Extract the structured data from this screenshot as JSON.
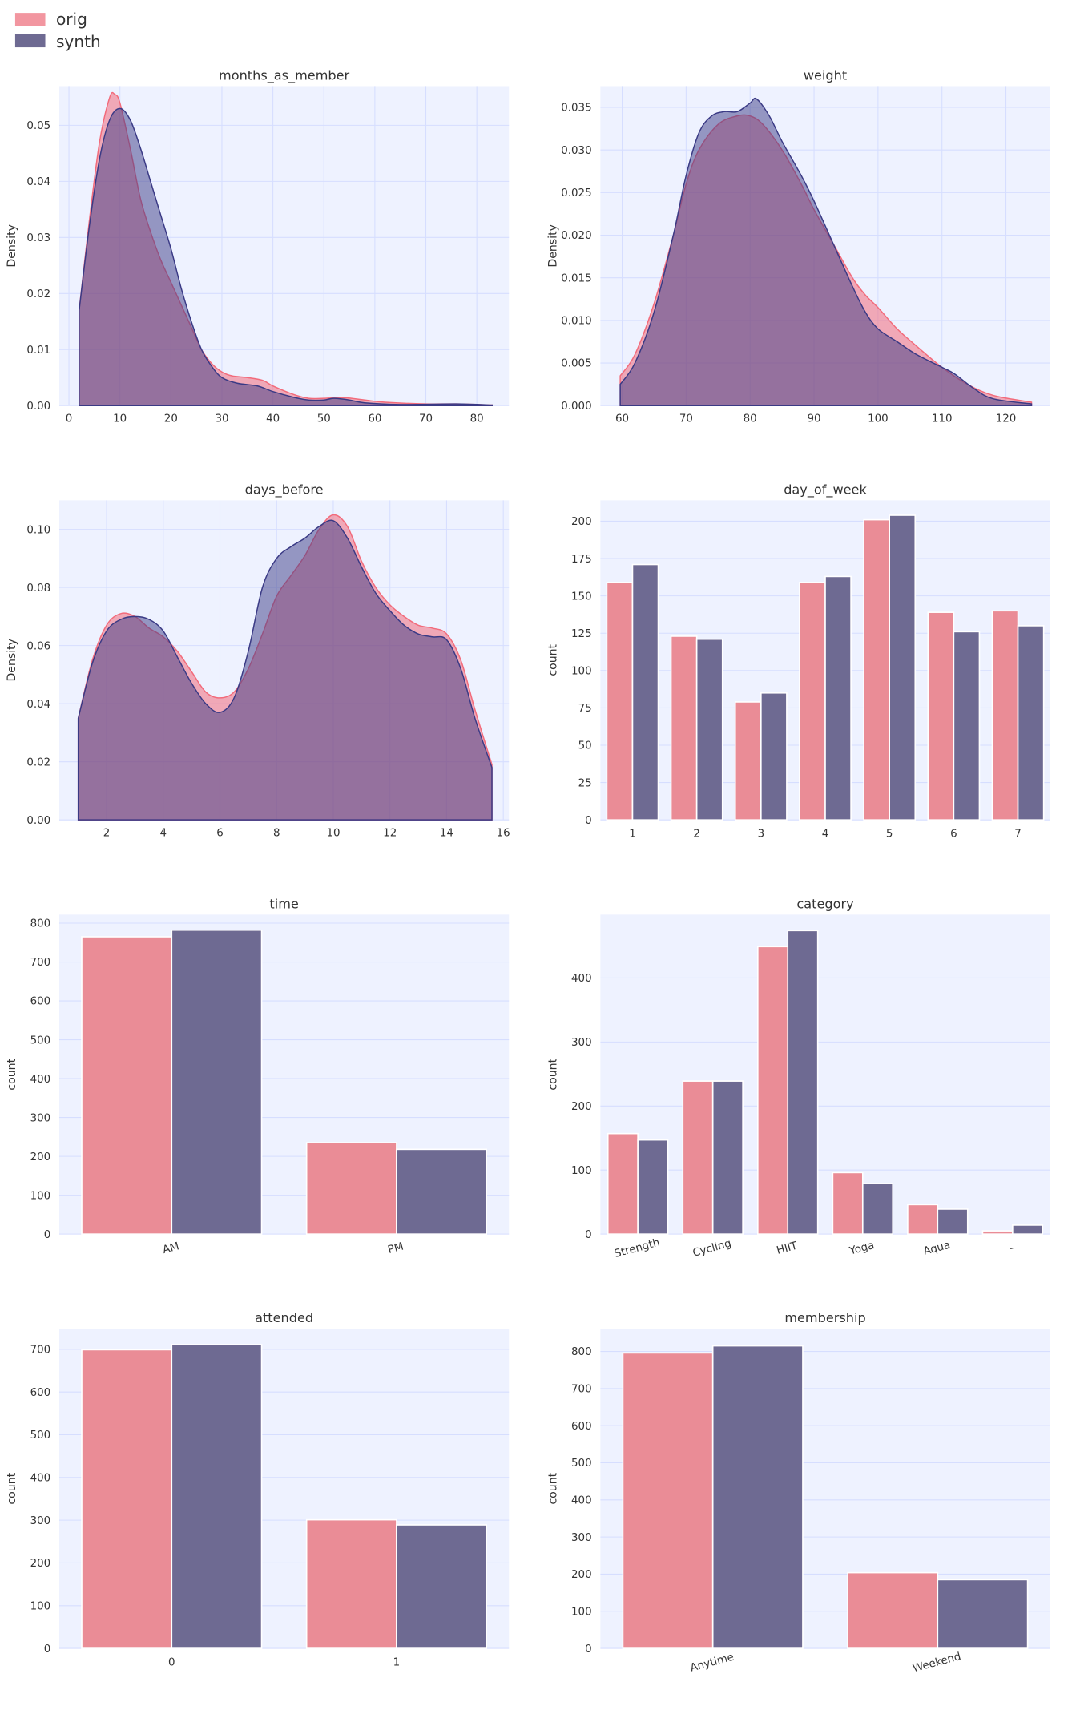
{
  "legend": {
    "items": [
      {
        "label": "orig",
        "color": "#f0848f"
      },
      {
        "label": "synth",
        "color": "#6e6a92"
      }
    ]
  },
  "colors": {
    "orig_bar": "#ea8c96",
    "synth_bar": "#6e6a92",
    "orig_kde": "#f26b7b",
    "synth_kde": "#3a3a85",
    "panel_bg": "#eef2ff",
    "grid": "#d6deff"
  },
  "chart_data": [
    {
      "type": "area",
      "title": "months_as_member",
      "xlabel": "",
      "ylabel": "Density",
      "xlim": [
        -1.9,
        86.3
      ],
      "ylim": [
        0,
        0.057
      ],
      "grid": true,
      "xticks": [
        0,
        10,
        20,
        30,
        40,
        50,
        60,
        70,
        80
      ],
      "yticks": [
        0,
        0.01,
        0.02,
        0.03,
        0.04,
        0.05
      ],
      "ytick_labels": [
        "0.00",
        "0.01",
        "0.02",
        "0.03",
        "0.04",
        "0.05"
      ],
      "series": [
        {
          "name": "orig",
          "points": [
            [
              2,
              0.017
            ],
            [
              4,
              0.033
            ],
            [
              6,
              0.047
            ],
            [
              8,
              0.055
            ],
            [
              9,
              0.0555
            ],
            [
              10,
              0.054
            ],
            [
              12,
              0.046
            ],
            [
              14,
              0.037
            ],
            [
              16,
              0.031
            ],
            [
              18,
              0.026
            ],
            [
              20,
              0.022
            ],
            [
              22,
              0.018
            ],
            [
              24,
              0.014
            ],
            [
              26,
              0.01
            ],
            [
              28,
              0.0075
            ],
            [
              30,
              0.006
            ],
            [
              32,
              0.0053
            ],
            [
              35,
              0.005
            ],
            [
              38,
              0.0045
            ],
            [
              40,
              0.0035
            ],
            [
              44,
              0.002
            ],
            [
              47,
              0.0013
            ],
            [
              50,
              0.0013
            ],
            [
              54,
              0.0014
            ],
            [
              58,
              0.001
            ],
            [
              62,
              0.0006
            ],
            [
              70,
              0.0003
            ],
            [
              76,
              0.0003
            ],
            [
              83,
              0.0001
            ]
          ]
        },
        {
          "name": "synth",
          "points": [
            [
              2,
              0.017
            ],
            [
              4,
              0.032
            ],
            [
              6,
              0.044
            ],
            [
              8,
              0.051
            ],
            [
              10,
              0.053
            ],
            [
              12,
              0.051
            ],
            [
              14,
              0.046
            ],
            [
              16,
              0.04
            ],
            [
              18,
              0.034
            ],
            [
              20,
              0.028
            ],
            [
              22,
              0.021
            ],
            [
              24,
              0.015
            ],
            [
              26,
              0.01
            ],
            [
              28,
              0.007
            ],
            [
              30,
              0.005
            ],
            [
              33,
              0.004
            ],
            [
              37,
              0.0035
            ],
            [
              40,
              0.0025
            ],
            [
              44,
              0.0015
            ],
            [
              47,
              0.001
            ],
            [
              50,
              0.001
            ],
            [
              52,
              0.0013
            ],
            [
              55,
              0.001
            ],
            [
              58,
              0.0005
            ],
            [
              65,
              0.0002
            ],
            [
              76,
              0.0003
            ],
            [
              83,
              0.0001
            ]
          ]
        }
      ]
    },
    {
      "type": "area",
      "title": "weight",
      "xlabel": "",
      "ylabel": "Density",
      "xlim": [
        56.6,
        126.9
      ],
      "ylim": [
        0,
        0.0375
      ],
      "grid": true,
      "xticks": [
        60,
        70,
        80,
        90,
        100,
        110,
        120
      ],
      "yticks": [
        0,
        0.005,
        0.01,
        0.015,
        0.02,
        0.025,
        0.03,
        0.035
      ],
      "ytick_labels": [
        "0.000",
        "0.005",
        "0.010",
        "0.015",
        "0.020",
        "0.025",
        "0.030",
        "0.035"
      ],
      "series": [
        {
          "name": "orig",
          "points": [
            [
              59.7,
              0.0035
            ],
            [
              62,
              0.006
            ],
            [
              65,
              0.012
            ],
            [
              68,
              0.02
            ],
            [
              70,
              0.026
            ],
            [
              72,
              0.03
            ],
            [
              75,
              0.033
            ],
            [
              78,
              0.034
            ],
            [
              80,
              0.034
            ],
            [
              82,
              0.033
            ],
            [
              85,
              0.03
            ],
            [
              88,
              0.026
            ],
            [
              90,
              0.023
            ],
            [
              93,
              0.019
            ],
            [
              96,
              0.015
            ],
            [
              98,
              0.013
            ],
            [
              100,
              0.0115
            ],
            [
              103,
              0.009
            ],
            [
              106,
              0.007
            ],
            [
              110,
              0.0045
            ],
            [
              114,
              0.0025
            ],
            [
              118,
              0.0012
            ],
            [
              124,
              0.0004
            ]
          ]
        },
        {
          "name": "synth",
          "points": [
            [
              59.7,
              0.0025
            ],
            [
              62,
              0.005
            ],
            [
              65,
              0.011
            ],
            [
              68,
              0.02
            ],
            [
              70,
              0.027
            ],
            [
              72,
              0.032
            ],
            [
              74,
              0.034
            ],
            [
              76,
              0.0345
            ],
            [
              78,
              0.0345
            ],
            [
              80,
              0.0355
            ],
            [
              81,
              0.036
            ],
            [
              83,
              0.034
            ],
            [
              85,
              0.031
            ],
            [
              88,
              0.027
            ],
            [
              90,
              0.024
            ],
            [
              93,
              0.019
            ],
            [
              96,
              0.014
            ],
            [
              98,
              0.011
            ],
            [
              100,
              0.009
            ],
            [
              103,
              0.0075
            ],
            [
              106,
              0.006
            ],
            [
              110,
              0.0045
            ],
            [
              112,
              0.0037
            ],
            [
              115,
              0.002
            ],
            [
              118,
              0.0008
            ],
            [
              124,
              0.0002
            ]
          ]
        }
      ]
    },
    {
      "type": "area",
      "title": "days_before",
      "xlabel": "",
      "ylabel": "Density",
      "xlim": [
        0.33,
        16.2
      ],
      "ylim": [
        0,
        0.11
      ],
      "grid": true,
      "xticks": [
        2,
        4,
        6,
        8,
        10,
        12,
        14,
        16
      ],
      "yticks": [
        0,
        0.02,
        0.04,
        0.06,
        0.08,
        0.1
      ],
      "ytick_labels": [
        "0.00",
        "0.02",
        "0.04",
        "0.06",
        "0.08",
        "0.10"
      ],
      "series": [
        {
          "name": "orig",
          "points": [
            [
              1,
              0.035
            ],
            [
              1.5,
              0.055
            ],
            [
              2,
              0.067
            ],
            [
              2.5,
              0.071
            ],
            [
              3,
              0.07
            ],
            [
              3.5,
              0.066
            ],
            [
              4,
              0.063
            ],
            [
              4.5,
              0.058
            ],
            [
              5,
              0.051
            ],
            [
              5.5,
              0.044
            ],
            [
              6,
              0.042
            ],
            [
              6.5,
              0.044
            ],
            [
              7,
              0.052
            ],
            [
              7.5,
              0.064
            ],
            [
              8,
              0.077
            ],
            [
              8.5,
              0.084
            ],
            [
              9,
              0.091
            ],
            [
              9.5,
              0.1
            ],
            [
              10,
              0.105
            ],
            [
              10.5,
              0.101
            ],
            [
              11,
              0.089
            ],
            [
              11.5,
              0.08
            ],
            [
              12,
              0.074
            ],
            [
              12.5,
              0.07
            ],
            [
              13,
              0.067
            ],
            [
              13.5,
              0.066
            ],
            [
              14,
              0.064
            ],
            [
              14.5,
              0.055
            ],
            [
              15,
              0.038
            ],
            [
              15.6,
              0.019
            ]
          ]
        },
        {
          "name": "synth",
          "points": [
            [
              1,
              0.035
            ],
            [
              1.5,
              0.054
            ],
            [
              2,
              0.065
            ],
            [
              2.5,
              0.069
            ],
            [
              3,
              0.07
            ],
            [
              3.5,
              0.069
            ],
            [
              4,
              0.065
            ],
            [
              4.5,
              0.056
            ],
            [
              5,
              0.047
            ],
            [
              5.5,
              0.04
            ],
            [
              6,
              0.037
            ],
            [
              6.5,
              0.042
            ],
            [
              7,
              0.058
            ],
            [
              7.5,
              0.08
            ],
            [
              8,
              0.09
            ],
            [
              8.5,
              0.094
            ],
            [
              9,
              0.097
            ],
            [
              9.5,
              0.101
            ],
            [
              10,
              0.103
            ],
            [
              10.5,
              0.097
            ],
            [
              11,
              0.087
            ],
            [
              11.5,
              0.078
            ],
            [
              12,
              0.072
            ],
            [
              12.5,
              0.067
            ],
            [
              13,
              0.064
            ],
            [
              13.5,
              0.063
            ],
            [
              14,
              0.062
            ],
            [
              14.5,
              0.052
            ],
            [
              15,
              0.035
            ],
            [
              15.6,
              0.018
            ]
          ]
        }
      ]
    },
    {
      "type": "bar",
      "title": "day_of_week",
      "xlabel": "",
      "ylabel": "count",
      "ylim": [
        0,
        214
      ],
      "grid": true,
      "rotate_labels": false,
      "categories": [
        "1",
        "2",
        "3",
        "4",
        "5",
        "6",
        "7"
      ],
      "yticks": [
        0,
        25,
        50,
        75,
        100,
        125,
        150,
        175,
        200
      ],
      "series": [
        {
          "name": "orig",
          "values": [
            159,
            123,
            79,
            159,
            201,
            139,
            140
          ]
        },
        {
          "name": "synth",
          "values": [
            171,
            121,
            85,
            163,
            204,
            126,
            130
          ]
        }
      ]
    },
    {
      "type": "bar",
      "title": "time",
      "xlabel": "",
      "ylabel": "count",
      "ylim": [
        0,
        822
      ],
      "grid": true,
      "rotate_labels": true,
      "categories": [
        "AM",
        "PM"
      ],
      "yticks": [
        0,
        100,
        200,
        300,
        400,
        500,
        600,
        700,
        800
      ],
      "series": [
        {
          "name": "orig",
          "values": [
            765,
            235
          ]
        },
        {
          "name": "synth",
          "values": [
            782,
            218
          ]
        }
      ]
    },
    {
      "type": "bar",
      "title": "category",
      "xlabel": "",
      "ylabel": "count",
      "ylim": [
        0,
        499
      ],
      "grid": true,
      "rotate_labels": true,
      "categories": [
        "Strength",
        "Cycling",
        "HIIT",
        "Yoga",
        "Aqua",
        "-"
      ],
      "yticks": [
        0,
        100,
        200,
        300,
        400
      ],
      "series": [
        {
          "name": "orig",
          "values": [
            157,
            239,
            449,
            96,
            46,
            5
          ]
        },
        {
          "name": "synth",
          "values": [
            147,
            239,
            474,
            79,
            39,
            14
          ]
        }
      ]
    },
    {
      "type": "bar",
      "title": "attended",
      "xlabel": "",
      "ylabel": "count",
      "ylim": [
        0,
        748
      ],
      "grid": true,
      "rotate_labels": false,
      "categories": [
        "0",
        "1"
      ],
      "yticks": [
        0,
        100,
        200,
        300,
        400,
        500,
        600,
        700
      ],
      "series": [
        {
          "name": "orig",
          "values": [
            699,
            301
          ]
        },
        {
          "name": "synth",
          "values": [
            711,
            289
          ]
        }
      ]
    },
    {
      "type": "bar",
      "title": "membership",
      "xlabel": "",
      "ylabel": "count",
      "ylim": [
        0,
        861
      ],
      "grid": true,
      "rotate_labels": true,
      "categories": [
        "Anytime",
        "Weekend"
      ],
      "yticks": [
        0,
        100,
        200,
        300,
        400,
        500,
        600,
        700,
        800
      ],
      "series": [
        {
          "name": "orig",
          "values": [
            796,
            204
          ]
        },
        {
          "name": "synth",
          "values": [
            815,
            185
          ]
        }
      ]
    }
  ]
}
